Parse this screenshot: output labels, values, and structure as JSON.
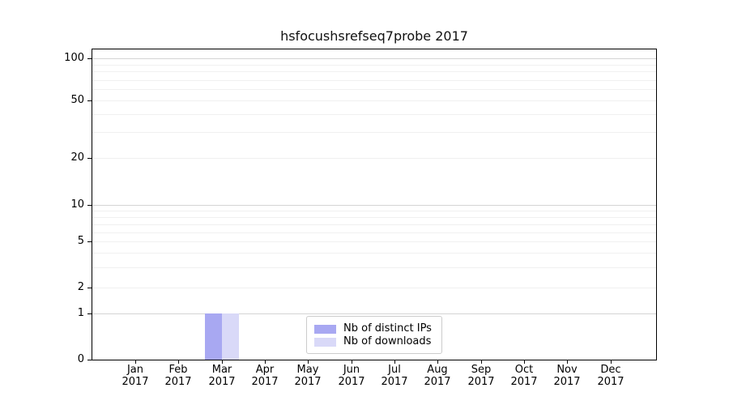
{
  "chart_data": {
    "type": "bar",
    "title": "hsfocushsrefseq7probe 2017",
    "categories": [
      "Jan 2017",
      "Feb 2017",
      "Mar 2017",
      "Apr 2017",
      "May 2017",
      "Jun 2017",
      "Jul 2017",
      "Aug 2017",
      "Sep 2017",
      "Oct 2017",
      "Nov 2017",
      "Dec 2017"
    ],
    "series": [
      {
        "name": "Nb of distinct IPs",
        "color": "#a8a8f2",
        "values": [
          0,
          0,
          1,
          0,
          0,
          0,
          0,
          0,
          0,
          0,
          0,
          0
        ]
      },
      {
        "name": "Nb of downloads",
        "color": "#d9d9f8",
        "values": [
          0,
          0,
          1,
          0,
          0,
          0,
          0,
          0,
          0,
          0,
          0,
          0
        ]
      }
    ],
    "xlabel": "",
    "ylabel": "",
    "yscale": "symlog",
    "yticks": [
      0,
      1,
      2,
      5,
      10,
      20,
      50,
      100
    ],
    "ylim": [
      0,
      115
    ],
    "grid": "horizontal major and minor, log-spaced",
    "legend_position": "lower center inside axes",
    "colors": {
      "axis": "#000000",
      "grid_major": "#d4d4d4",
      "grid_minor": "#f0f0f0",
      "legend_border": "#cccccc",
      "text": "#000000"
    }
  }
}
